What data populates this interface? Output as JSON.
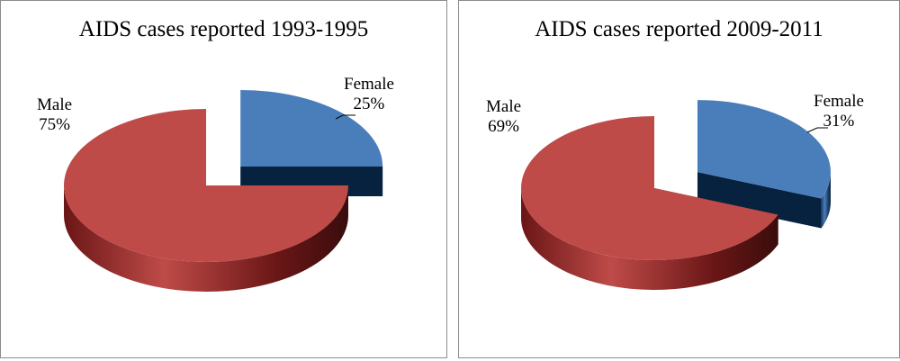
{
  "chart_data": [
    {
      "type": "pie",
      "title": "AIDS cases reported 1993-1995",
      "categories": [
        "Female",
        "Male"
      ],
      "values": [
        25,
        75
      ],
      "value_labels": [
        "25%",
        "75%"
      ],
      "colors": {
        "Female": "#4a7ebb",
        "Male": "#be4b48"
      },
      "style": "3d-exploded"
    },
    {
      "type": "pie",
      "title": "AIDS cases reported 2009-2011",
      "categories": [
        "Female",
        "Male"
      ],
      "values": [
        31,
        69
      ],
      "value_labels": [
        "31%",
        "69%"
      ],
      "colors": {
        "Female": "#4a7ebb",
        "Male": "#be4b48"
      },
      "style": "3d-exploded"
    }
  ]
}
